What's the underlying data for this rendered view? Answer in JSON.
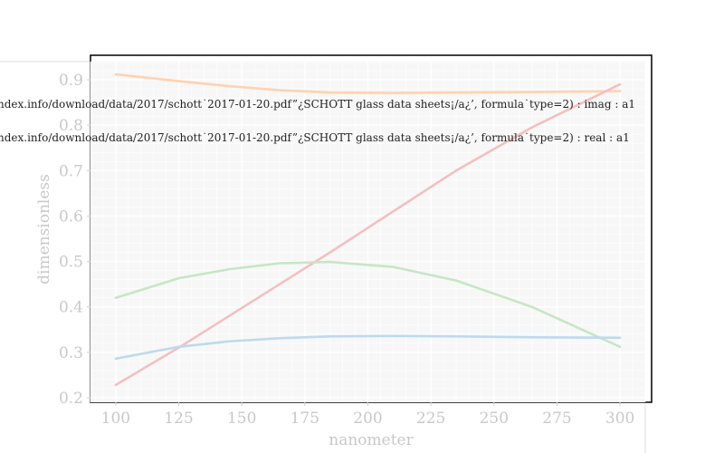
{
  "chart_data": {
    "type": "line",
    "xlabel": "nanometer",
    "ylabel": "dimensionless",
    "xlim": [
      90,
      310
    ],
    "ylim": [
      0.19,
      0.94
    ],
    "x_ticks": [
      100,
      125,
      150,
      175,
      200,
      225,
      250,
      275,
      300
    ],
    "y_ticks": [
      0.2,
      0.3,
      0.4,
      0.5,
      0.6,
      0.7,
      0.8,
      0.9
    ],
    "grid": true,
    "legend_position": "top",
    "legend": [
      "ndex.info/download/data/2017/schott˙2017-01-20.pdf”¿SCHOTT glass data sheets¡/a¿’, formula˙type=2) : imag : a1",
      "ndex.info/download/data/2017/schott˙2017-01-20.pdf”¿SCHOTT glass data sheets¡/a¿’, formula˙type=2) : real : a1"
    ],
    "x": [
      100,
      125,
      145,
      165,
      185,
      210,
      235,
      265,
      300
    ],
    "series": [
      {
        "color": "#ffd2b0",
        "values": [
          0.912,
          0.897,
          0.886,
          0.877,
          0.872,
          0.871,
          0.872,
          0.873,
          0.875
        ]
      },
      {
        "color": "#f2c0c0",
        "values": [
          0.228,
          0.31,
          0.38,
          0.45,
          0.52,
          0.61,
          0.7,
          0.795,
          0.89
        ]
      },
      {
        "color": "#c6e6c6",
        "values": [
          0.42,
          0.463,
          0.483,
          0.496,
          0.499,
          0.488,
          0.458,
          0.4,
          0.312
        ]
      },
      {
        "color": "#bedaea",
        "values": [
          0.286,
          0.312,
          0.324,
          0.331,
          0.335,
          0.336,
          0.335,
          0.333,
          0.332
        ]
      }
    ]
  },
  "colors": {
    "plot_background": "#f7f7f7",
    "grid": "#ffffff",
    "frame": "#000000",
    "text": "#c8c8c8"
  }
}
